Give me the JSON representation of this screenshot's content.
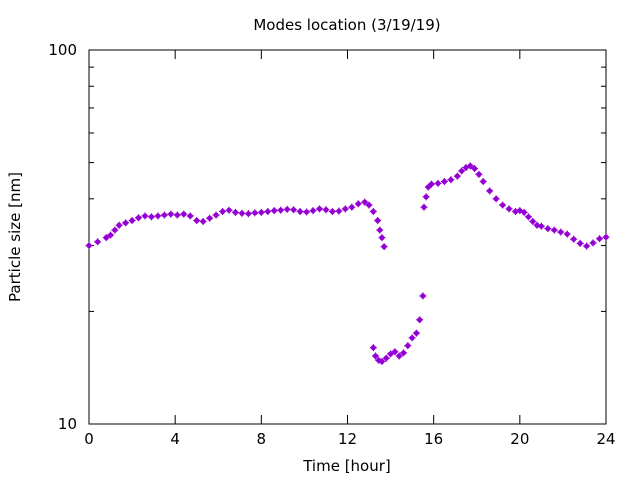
{
  "chart_data": {
    "type": "scatter",
    "title": "Modes location (3/19/19)",
    "xlabel": "Time [hour]",
    "ylabel": "Particle size [nm]",
    "xlim": [
      0,
      24
    ],
    "ylim": [
      10,
      100
    ],
    "y_scale": "log",
    "x_ticks": [
      0,
      4,
      8,
      12,
      16,
      20,
      24
    ],
    "x_tick_labels": [
      "0",
      "4",
      "8",
      "12",
      "16",
      "20",
      "24"
    ],
    "y_tick_labels": [
      "10",
      "100"
    ],
    "grid": false,
    "legend": "none",
    "marker_color": "#9400D3",
    "series": [
      {
        "points": [
          [
            0.0,
            30.0
          ],
          [
            0.4,
            30.7
          ],
          [
            0.8,
            31.5
          ],
          [
            1.0,
            32.0
          ],
          [
            1.2,
            33.0
          ],
          [
            1.4,
            34.0
          ],
          [
            1.7,
            34.5
          ],
          [
            2.0,
            35.0
          ],
          [
            2.3,
            35.6
          ],
          [
            2.6,
            36.0
          ],
          [
            2.9,
            35.8
          ],
          [
            3.2,
            36.0
          ],
          [
            3.5,
            36.2
          ],
          [
            3.8,
            36.4
          ],
          [
            4.1,
            36.2
          ],
          [
            4.4,
            36.4
          ],
          [
            4.7,
            36.0
          ],
          [
            5.0,
            35.0
          ],
          [
            5.3,
            34.8
          ],
          [
            5.6,
            35.5
          ],
          [
            5.9,
            36.2
          ],
          [
            6.2,
            37.0
          ],
          [
            6.5,
            37.3
          ],
          [
            6.8,
            36.8
          ],
          [
            7.1,
            36.6
          ],
          [
            7.4,
            36.5
          ],
          [
            7.7,
            36.7
          ],
          [
            8.0,
            36.8
          ],
          [
            8.3,
            37.0
          ],
          [
            8.6,
            37.2
          ],
          [
            8.9,
            37.3
          ],
          [
            9.2,
            37.5
          ],
          [
            9.5,
            37.4
          ],
          [
            9.8,
            37.0
          ],
          [
            10.1,
            36.9
          ],
          [
            10.4,
            37.2
          ],
          [
            10.7,
            37.6
          ],
          [
            11.0,
            37.4
          ],
          [
            11.3,
            37.0
          ],
          [
            11.6,
            37.1
          ],
          [
            11.9,
            37.6
          ],
          [
            12.2,
            38.0
          ],
          [
            12.5,
            38.8
          ],
          [
            12.8,
            39.2
          ],
          [
            13.0,
            38.5
          ],
          [
            13.2,
            37.0
          ],
          [
            13.4,
            35.0
          ],
          [
            13.5,
            33.0
          ],
          [
            13.6,
            31.5
          ],
          [
            13.7,
            29.8
          ],
          [
            13.2,
            16.0
          ],
          [
            13.3,
            15.2
          ],
          [
            13.45,
            14.8
          ],
          [
            13.6,
            14.7
          ],
          [
            13.8,
            15.0
          ],
          [
            14.0,
            15.4
          ],
          [
            14.2,
            15.6
          ],
          [
            14.4,
            15.2
          ],
          [
            14.6,
            15.5
          ],
          [
            14.8,
            16.2
          ],
          [
            15.0,
            17.0
          ],
          [
            15.2,
            17.5
          ],
          [
            15.35,
            19.0
          ],
          [
            15.5,
            22.0
          ],
          [
            15.55,
            38.0
          ],
          [
            15.65,
            40.5
          ],
          [
            15.75,
            43.0
          ],
          [
            15.9,
            43.8
          ],
          [
            16.2,
            44.0
          ],
          [
            16.5,
            44.5
          ],
          [
            16.8,
            45.0
          ],
          [
            17.1,
            46.0
          ],
          [
            17.3,
            47.5
          ],
          [
            17.5,
            48.5
          ],
          [
            17.7,
            49.0
          ],
          [
            17.9,
            48.2
          ],
          [
            18.1,
            46.5
          ],
          [
            18.3,
            44.5
          ],
          [
            18.6,
            42.0
          ],
          [
            18.9,
            40.0
          ],
          [
            19.2,
            38.5
          ],
          [
            19.5,
            37.6
          ],
          [
            19.8,
            37.0
          ],
          [
            20.0,
            37.2
          ],
          [
            20.2,
            36.8
          ],
          [
            20.4,
            35.8
          ],
          [
            20.6,
            34.8
          ],
          [
            20.8,
            34.0
          ],
          [
            21.0,
            33.8
          ],
          [
            21.3,
            33.3
          ],
          [
            21.6,
            33.0
          ],
          [
            21.9,
            32.6
          ],
          [
            22.2,
            32.2
          ],
          [
            22.5,
            31.2
          ],
          [
            22.8,
            30.4
          ],
          [
            23.1,
            29.9
          ],
          [
            23.4,
            30.5
          ],
          [
            23.7,
            31.3
          ],
          [
            24.0,
            31.6
          ]
        ]
      }
    ]
  }
}
